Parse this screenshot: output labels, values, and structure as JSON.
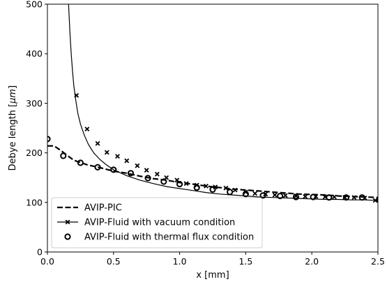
{
  "chart_data": {
    "type": "line",
    "title": "",
    "xlabel": "x [mm]",
    "ylabel_prefix": "Debye length [",
    "ylabel_unit": "μm",
    "ylabel_suffix": "]",
    "xlim": [
      0.0,
      2.5
    ],
    "ylim": [
      0,
      500
    ],
    "xticks": [
      "0.0",
      "0.5",
      "1.0",
      "1.5",
      "2.0",
      "2.5"
    ],
    "xtick_values": [
      0.0,
      0.5,
      1.0,
      1.5,
      2.0,
      2.5
    ],
    "yticks": [
      "0",
      "100",
      "200",
      "300",
      "400",
      "500"
    ],
    "ytick_values": [
      0,
      100,
      200,
      300,
      400,
      500
    ],
    "grid": false,
    "legend_position": "lower-left",
    "series": [
      {
        "name": "AVIP-PIC",
        "style": "dashed",
        "marker": "none",
        "color": "#000000",
        "x": [
          0.0,
          0.05,
          0.1,
          0.15,
          0.2,
          0.3,
          0.4,
          0.5,
          0.6,
          0.7,
          0.8,
          0.9,
          1.0,
          1.1,
          1.2,
          1.3,
          1.4,
          1.5,
          1.6,
          1.7,
          1.8,
          1.9,
          2.0,
          2.1,
          2.2,
          2.3,
          2.4,
          2.5
        ],
        "y": [
          214,
          214,
          205,
          195,
          185,
          176,
          170,
          163,
          159,
          153,
          148,
          145,
          140,
          137,
          133,
          130,
          127,
          125,
          123,
          121,
          119,
          117,
          116,
          115,
          113,
          112,
          111,
          110
        ]
      },
      {
        "name": "AVIP-Fluid with vacuum condition",
        "style": "solid",
        "marker": "x",
        "color": "#000000",
        "x": [
          0.16,
          0.17,
          0.18,
          0.19,
          0.2,
          0.215,
          0.23,
          0.25,
          0.28,
          0.31,
          0.35,
          0.4,
          0.45,
          0.5,
          0.6,
          0.7,
          0.8,
          0.9,
          1.0,
          1.1,
          1.2,
          1.3,
          1.4,
          1.5,
          1.6,
          1.7,
          1.8,
          1.9,
          2.0,
          2.1,
          2.2,
          2.3,
          2.4,
          2.5
        ],
        "y": [
          500,
          445,
          400,
          365,
          335,
          305,
          280,
          258,
          235,
          217,
          200,
          186,
          175,
          166,
          154,
          145,
          138,
          132,
          128,
          124,
          120,
          117,
          115,
          113,
          111,
          110,
          109,
          108,
          107,
          106,
          106,
          105,
          105,
          104
        ],
        "markers_x": [
          0.22,
          0.3,
          0.38,
          0.45,
          0.53,
          0.6,
          0.68,
          0.75,
          0.83,
          0.9,
          0.98,
          1.05,
          1.13,
          1.2,
          1.27,
          1.35,
          1.42,
          1.5,
          1.57,
          1.65,
          1.72,
          1.8,
          1.88,
          1.95,
          2.03,
          2.1,
          2.17,
          2.25,
          2.32,
          2.4,
          2.48
        ],
        "markers_y": [
          316,
          248,
          219,
          201,
          193,
          184,
          174,
          165,
          157,
          150,
          145,
          138,
          135,
          133,
          131,
          129,
          125,
          121,
          118,
          117,
          115,
          114,
          113,
          112,
          112,
          111,
          111,
          110,
          110,
          109,
          104
        ]
      },
      {
        "name": "AVIP-Fluid with thermal flux condition",
        "style": "none",
        "marker": "o",
        "color": "#000000",
        "x": [
          0.0,
          0.12,
          0.25,
          0.38,
          0.5,
          0.63,
          0.76,
          0.88,
          1.0,
          1.13,
          1.25,
          1.38,
          1.5,
          1.63,
          1.76,
          1.88,
          2.01,
          2.13,
          2.26,
          2.38,
          2.51
        ],
        "y": [
          228,
          194,
          180,
          171,
          166,
          159,
          149,
          142,
          137,
          130,
          126,
          121,
          117,
          114,
          113,
          111,
          111,
          110,
          110,
          110,
          105
        ]
      }
    ]
  }
}
